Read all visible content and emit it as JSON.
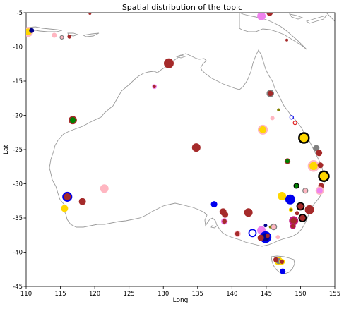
{
  "chart_data": {
    "type": "scatter",
    "title": "Spatial  distribution of the topic",
    "xlabel": "Long",
    "ylabel": "Lat",
    "xlim": [
      110,
      155
    ],
    "ylim": [
      -45,
      -5
    ],
    "xticks": [
      "110",
      "115",
      "120",
      "125",
      "130",
      "135",
      "140",
      "145",
      "150",
      "155"
    ],
    "yticks": [
      "-5",
      "-10",
      "-15",
      "-20",
      "-25",
      "-30",
      "-35",
      "-40",
      "-45"
    ],
    "grid": false,
    "colors": {
      "darkred": "#a52a2a",
      "red": "#e02020",
      "blue": "#0000ee",
      "navy": "#00008b",
      "gold": "#ffd700",
      "pink": "#ffb6c1",
      "violet": "#ee82ee",
      "magenta": "#c71585",
      "green": "#008000",
      "gray": "#808080",
      "black": "#000000",
      "olive": "#808000",
      "coast": "#9a9a9a"
    },
    "points": [
      {
        "x": 110.3,
        "y": -7.8,
        "r": 6,
        "fill": "gold",
        "ring": "pink"
      },
      {
        "x": 110.8,
        "y": -7.6,
        "r": 3.5,
        "fill": "navy"
      },
      {
        "x": 114.1,
        "y": -8.3,
        "r": 3.5,
        "fill": "pink"
      },
      {
        "x": 115.2,
        "y": -8.6,
        "r": 2.5,
        "fill": "pink",
        "ring": "gray"
      },
      {
        "x": 116.3,
        "y": -8.5,
        "r": 2.8,
        "fill": "darkred"
      },
      {
        "x": 119.3,
        "y": -5.1,
        "r": 2,
        "fill": "darkred"
      },
      {
        "x": 130.8,
        "y": -12.4,
        "r": 7,
        "fill": "darkred"
      },
      {
        "x": 128.7,
        "y": -15.8,
        "r": 2.8,
        "fill": "darkred",
        "ring": "violet"
      },
      {
        "x": 116.8,
        "y": -20.7,
        "r": 5,
        "fill": "green",
        "ring": "darkred"
      },
      {
        "x": 134.8,
        "y": -24.7,
        "r": 6,
        "fill": "darkred"
      },
      {
        "x": 144.3,
        "y": -5.5,
        "r": 6,
        "fill": "violet"
      },
      {
        "x": 145.5,
        "y": -5.0,
        "r": 4.5,
        "fill": "darkred"
      },
      {
        "x": 148.0,
        "y": -9.0,
        "r": 2,
        "fill": "darkred"
      },
      {
        "x": 145.6,
        "y": -16.8,
        "r": 4.5,
        "fill": "darkred",
        "ring": "gray"
      },
      {
        "x": 146.8,
        "y": -19.2,
        "r": 2.2,
        "fill": "olive"
      },
      {
        "x": 148.7,
        "y": -20.3,
        "r": 2.5,
        "fill": "white",
        "ring": "blue"
      },
      {
        "x": 149.2,
        "y": -21.1,
        "r": 2.5,
        "fill": "white",
        "ring": "red"
      },
      {
        "x": 145.9,
        "y": -20.4,
        "r": 3,
        "fill": "pink"
      },
      {
        "x": 144.5,
        "y": -22.1,
        "r": 6,
        "fill": "gold",
        "ring": "pink"
      },
      {
        "x": 150.5,
        "y": -23.3,
        "r": 7,
        "fill": "gold",
        "ring": "black"
      },
      {
        "x": 152.3,
        "y": -24.8,
        "r": 4.5,
        "fill": "gray"
      },
      {
        "x": 152.7,
        "y": -25.5,
        "r": 4.5,
        "fill": "darkred"
      },
      {
        "x": 148.1,
        "y": -26.7,
        "r": 3.5,
        "fill": "green",
        "ring": "darkred"
      },
      {
        "x": 151.9,
        "y": -27.4,
        "r": 7,
        "fill": "gold",
        "ring": "pink"
      },
      {
        "x": 152.9,
        "y": -27.3,
        "r": 4,
        "fill": "darkred"
      },
      {
        "x": 153.4,
        "y": -28.9,
        "r": 7,
        "fill": "gold",
        "ring": "black"
      },
      {
        "x": 149.4,
        "y": -30.3,
        "r": 3.5,
        "fill": "green",
        "ring": "black"
      },
      {
        "x": 153.0,
        "y": -30.3,
        "r": 4,
        "fill": "darkred"
      },
      {
        "x": 152.8,
        "y": -31.0,
        "r": 5,
        "fill": "violet",
        "ring": "pink"
      },
      {
        "x": 150.7,
        "y": -31.0,
        "r": 3.5,
        "fill": "pink",
        "ring": "gray"
      },
      {
        "x": 147.3,
        "y": -31.8,
        "r": 6,
        "fill": "gold"
      },
      {
        "x": 148.5,
        "y": -32.3,
        "r": 7,
        "fill": "blue"
      },
      {
        "x": 150.0,
        "y": -33.3,
        "r": 5,
        "fill": "darkred",
        "ring": "black"
      },
      {
        "x": 151.3,
        "y": -33.8,
        "r": 6.5,
        "fill": "darkred"
      },
      {
        "x": 148.6,
        "y": -33.8,
        "r": 2.5,
        "fill": "olive",
        "ring": "gold"
      },
      {
        "x": 149.5,
        "y": -34.3,
        "r": 3,
        "fill": "darkred"
      },
      {
        "x": 150.3,
        "y": -35.0,
        "r": 5,
        "fill": "darkred",
        "ring": "black"
      },
      {
        "x": 149.0,
        "y": -35.4,
        "r": 5.5,
        "fill": "darkred",
        "ring": "magenta"
      },
      {
        "x": 148.9,
        "y": -36.2,
        "r": 3.5,
        "fill": "darkred",
        "ring": "magenta"
      },
      {
        "x": 116.0,
        "y": -31.9,
        "r": 6,
        "fill": "darkred",
        "ring": "blue"
      },
      {
        "x": 121.4,
        "y": -30.7,
        "r": 6,
        "fill": "pink"
      },
      {
        "x": 118.2,
        "y": -32.6,
        "r": 5,
        "fill": "darkred"
      },
      {
        "x": 115.6,
        "y": -33.6,
        "r": 5,
        "fill": "gold"
      },
      {
        "x": 137.4,
        "y": -33.0,
        "r": 4.5,
        "fill": "blue"
      },
      {
        "x": 138.7,
        "y": -34.1,
        "r": 5,
        "fill": "darkred"
      },
      {
        "x": 139.0,
        "y": -34.5,
        "r": 4.5,
        "fill": "darkred"
      },
      {
        "x": 138.9,
        "y": -35.5,
        "r": 4,
        "fill": "darkred",
        "ring": "violet"
      },
      {
        "x": 142.4,
        "y": -34.2,
        "r": 6,
        "fill": "darkred"
      },
      {
        "x": 140.8,
        "y": -37.3,
        "r": 4,
        "fill": "darkred",
        "ring": "pink"
      },
      {
        "x": 143.0,
        "y": -37.2,
        "r": 5,
        "fill": "white",
        "ring": "blue"
      },
      {
        "x": 144.3,
        "y": -36.8,
        "r": 6,
        "fill": "violet"
      },
      {
        "x": 144.9,
        "y": -36.1,
        "r": 2.5,
        "fill": "navy"
      },
      {
        "x": 145.6,
        "y": -36.3,
        "r": 2,
        "fill": "olive"
      },
      {
        "x": 144.9,
        "y": -37.8,
        "r": 7,
        "fill": "navy",
        "ring": "blue"
      },
      {
        "x": 144.2,
        "y": -37.9,
        "r": 4.5,
        "fill": "darkred"
      },
      {
        "x": 145.2,
        "y": -37.6,
        "r": 3,
        "fill": "darkred"
      },
      {
        "x": 146.1,
        "y": -36.3,
        "r": 4,
        "fill": "pink",
        "ring": "gray"
      },
      {
        "x": 146.7,
        "y": -37.8,
        "r": 3,
        "fill": "pink"
      },
      {
        "x": 146.8,
        "y": -41.3,
        "r": 5,
        "fill": "gray",
        "ring": "gold"
      },
      {
        "x": 147.3,
        "y": -41.4,
        "r": 3.5,
        "fill": "darkred",
        "ring": "gold"
      },
      {
        "x": 146.4,
        "y": -41.1,
        "r": 3.5,
        "fill": "darkred"
      },
      {
        "x": 147.4,
        "y": -42.8,
        "r": 4,
        "fill": "blue"
      }
    ]
  }
}
